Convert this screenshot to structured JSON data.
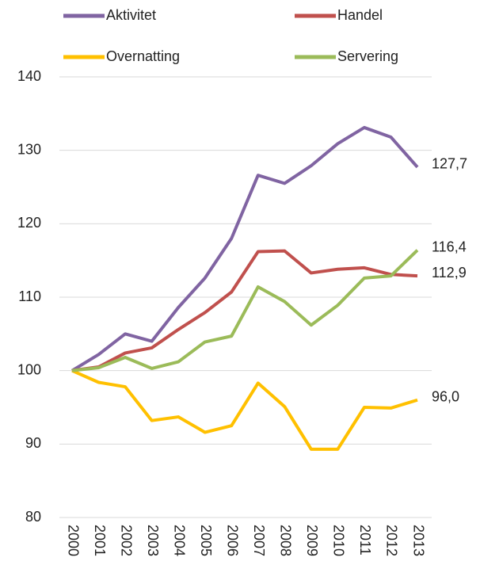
{
  "chart_data": {
    "type": "line",
    "categories": [
      "2000",
      "2001",
      "2002",
      "2003",
      "2004",
      "2005",
      "2006",
      "2007",
      "2008",
      "2009",
      "2010",
      "2011",
      "2012",
      "2013"
    ],
    "series": [
      {
        "name": "Aktivitet",
        "color": "#8064a2",
        "values": [
          100,
          102.2,
          105.0,
          104.0,
          108.6,
          112.6,
          118.0,
          126.6,
          125.5,
          127.9,
          130.9,
          133.1,
          131.8,
          127.7
        ],
        "value_labels": [
          null,
          null,
          null,
          null,
          null,
          null,
          null,
          null,
          null,
          null,
          null,
          null,
          null,
          "127,7"
        ]
      },
      {
        "name": "Handel",
        "color": "#c0504d",
        "values": [
          100,
          100.5,
          102.4,
          103.1,
          105.6,
          107.9,
          110.7,
          116.2,
          116.3,
          113.3,
          113.8,
          114.0,
          113.1,
          112.9
        ],
        "value_labels": [
          null,
          null,
          null,
          null,
          null,
          null,
          null,
          null,
          null,
          null,
          null,
          null,
          null,
          "112,9"
        ]
      },
      {
        "name": "Overnatting",
        "color": "#ffc000",
        "values": [
          100,
          98.4,
          97.8,
          93.2,
          93.7,
          91.6,
          92.5,
          98.3,
          95.1,
          89.3,
          89.3,
          95.0,
          94.9,
          96.0
        ],
        "value_labels": [
          null,
          null,
          null,
          null,
          null,
          null,
          null,
          null,
          null,
          null,
          null,
          null,
          null,
          "96,0"
        ]
      },
      {
        "name": "Servering",
        "color": "#9bbb59",
        "values": [
          100,
          100.4,
          101.8,
          100.3,
          101.2,
          103.9,
          104.7,
          111.4,
          109.4,
          106.2,
          108.9,
          112.6,
          112.9,
          116.4
        ],
        "value_labels": [
          null,
          null,
          null,
          null,
          null,
          null,
          null,
          null,
          null,
          null,
          null,
          null,
          null,
          "116,4"
        ]
      }
    ],
    "ylim": [
      80,
      140
    ],
    "yticks": [
      80,
      90,
      100,
      110,
      120,
      130,
      140
    ],
    "grid": true,
    "legend": "top"
  }
}
